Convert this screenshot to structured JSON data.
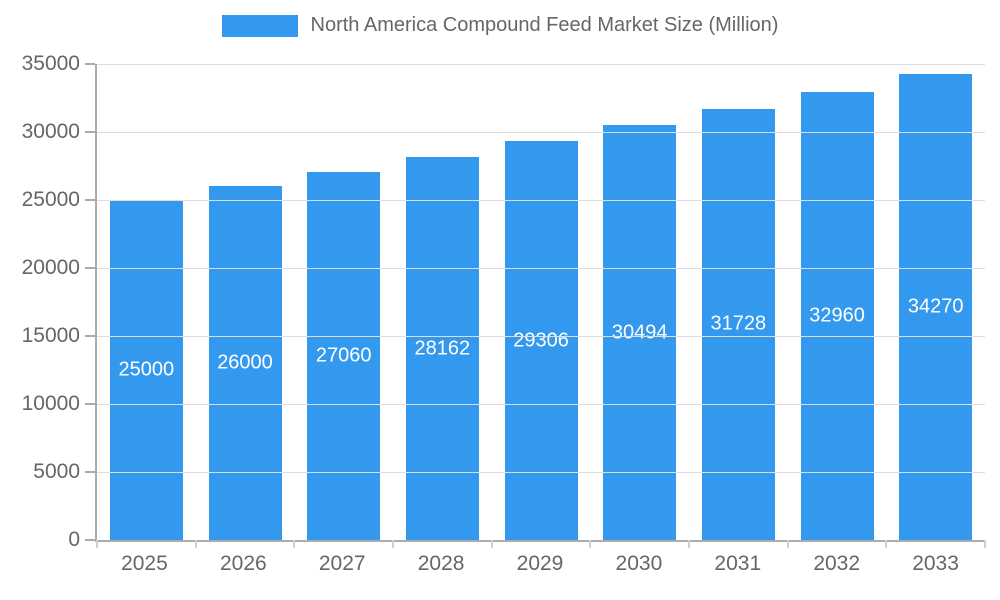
{
  "chart_data": {
    "type": "bar",
    "title": "North America Compound Feed Market Size (Million)",
    "categories": [
      "2025",
      "2026",
      "2027",
      "2028",
      "2029",
      "2030",
      "2031",
      "2032",
      "2033"
    ],
    "values": [
      25000,
      26000,
      27060,
      28162,
      29306,
      30494,
      31728,
      32960,
      34270
    ],
    "xlabel": "",
    "ylabel": "",
    "ylim": [
      0,
      35000
    ],
    "ytick_step": 5000,
    "yticks": [
      0,
      5000,
      10000,
      15000,
      20000,
      25000,
      30000,
      35000
    ],
    "grid": true,
    "legend_position": "top",
    "colors": {
      "bar": "#3399EF",
      "bar_label": "#FFFFFF",
      "axis_text": "#666666",
      "grid_line": "#DEDEDE",
      "axis_line": "#ABABAB"
    }
  }
}
